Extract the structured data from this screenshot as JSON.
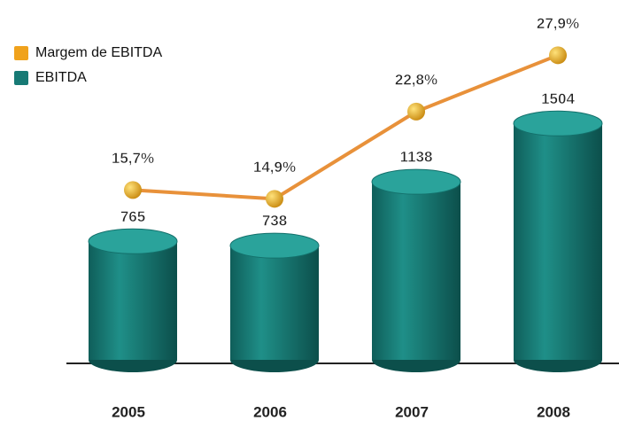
{
  "chart_data": {
    "type": "bar",
    "categories": [
      "2005",
      "2006",
      "2007",
      "2008"
    ],
    "series": [
      {
        "name": "EBITDA",
        "type": "bar",
        "color": "#177a75",
        "values": [
          765,
          738,
          1138,
          1504
        ]
      },
      {
        "name": "Margem de EBITDA",
        "type": "line",
        "axis": "y2",
        "color": "#e8913a",
        "values": [
          15.7,
          14.9,
          22.8,
          27.9
        ],
        "value_labels": [
          "15,7%",
          "14,9%",
          "22,8%",
          "27,9%"
        ]
      }
    ],
    "ylim": [
      0,
      2250
    ],
    "y2lim": [
      0,
      32.5
    ],
    "legend": "top-left"
  }
}
